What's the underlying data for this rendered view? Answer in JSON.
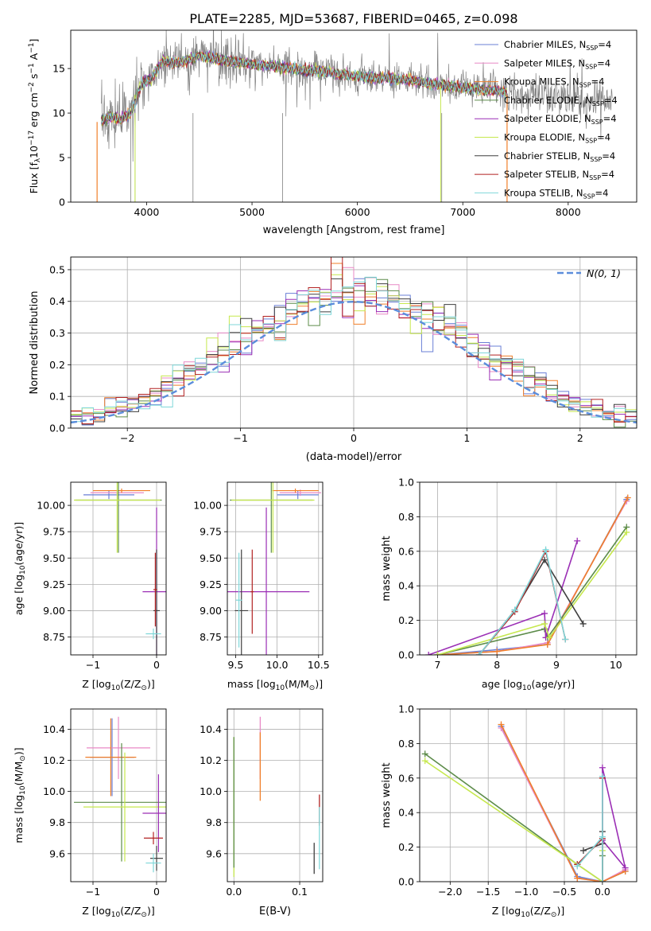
{
  "figure_title": "PLATE=2285, MJD=53687, FIBERID=0465, z=0.098",
  "colors": {
    "Chabrier MILES": "#6a7fd6",
    "Salpeter MILES": "#e889c6",
    "Kroupa MILES": "#f07f2a",
    "Chabrier ELODIE": "#5d8c4a",
    "Salpeter ELODIE": "#9b2fb5",
    "Kroupa ELODIE": "#c6e84e",
    "Chabrier STELIB": "#3f3f3f",
    "Salpeter STELIB": "#b22222",
    "Kroupa STELIB": "#7fd7d9",
    "data": "#808080",
    "normal": "#5b8ddb"
  },
  "chart_data": [
    {
      "id": "spectrum",
      "type": "line",
      "xlabel": "wavelength [Angstrom, rest frame]",
      "ylabel": "Flux [f_λ10^-17 erg cm^-2 s^-1 A^-1]",
      "xlim": [
        3280,
        8650
      ],
      "ylim": [
        0,
        19.3
      ],
      "xticks": [
        4000,
        5000,
        6000,
        7000,
        8000
      ],
      "yticks": [
        0,
        5,
        10,
        15
      ],
      "grid": false,
      "legend_position": "top-right",
      "legend": [
        {
          "name": "Chabrier MILES",
          "suffix": "N_SSP=4"
        },
        {
          "name": "Salpeter MILES",
          "suffix": "N_SSP=4"
        },
        {
          "name": "Kroupa MILES",
          "suffix": "N_SSP=4"
        },
        {
          "name": "Chabrier ELODIE",
          "suffix": "N_SSP=4"
        },
        {
          "name": "Salpeter ELODIE",
          "suffix": "N_SSP=4"
        },
        {
          "name": "Kroupa ELODIE",
          "suffix": "N_SSP=4"
        },
        {
          "name": "Chabrier STELIB",
          "suffix": "N_SSP=4"
        },
        {
          "name": "Salpeter STELIB",
          "suffix": "N_SSP=4"
        },
        {
          "name": "Kroupa STELIB",
          "suffix": "N_SSP=4"
        }
      ],
      "continuum": [
        [
          3570,
          9.1
        ],
        [
          3650,
          9.6
        ],
        [
          3750,
          9.3
        ],
        [
          3850,
          10.0
        ],
        [
          3950,
          13.2
        ],
        [
          4050,
          14.0
        ],
        [
          4150,
          15.8
        ],
        [
          4300,
          15.6
        ],
        [
          4500,
          16.4
        ],
        [
          4700,
          16.0
        ],
        [
          4900,
          15.6
        ],
        [
          5100,
          15.4
        ],
        [
          5300,
          15.1
        ],
        [
          5500,
          14.8
        ],
        [
          5700,
          14.6
        ],
        [
          5900,
          14.3
        ],
        [
          6100,
          14.0
        ],
        [
          6300,
          13.9
        ],
        [
          6500,
          13.7
        ],
        [
          6700,
          13.3
        ],
        [
          6900,
          13.0
        ],
        [
          7100,
          12.7
        ],
        [
          7300,
          12.5
        ],
        [
          7420,
          12.3
        ]
      ],
      "data_extent": [
        3570,
        8420
      ],
      "model_extent": [
        3570,
        7420
      ]
    },
    {
      "id": "residuals",
      "type": "histogram",
      "xlabel": "(data-model)/error",
      "ylabel": "Normed distribution",
      "xlim": [
        -2.5,
        2.5
      ],
      "ylim": [
        0,
        0.54
      ],
      "xticks": [
        -2,
        -1,
        0,
        1,
        2
      ],
      "yticks": [
        0.0,
        0.1,
        0.2,
        0.3,
        0.4,
        0.5
      ],
      "grid": true,
      "legend_position": "top-right",
      "legend": [
        {
          "name": "N(0,1)",
          "style": "dashed"
        }
      ],
      "bin_width": 0.1,
      "bin_start": -2.5,
      "models": 9
    },
    {
      "id": "age-vs-Z",
      "type": "errorbar",
      "xlabel": "Z [log10(Z/Z⊙)]",
      "ylabel": "age [log10(age/yr)]",
      "xlim": [
        -1.35,
        0.15
      ],
      "ylim": [
        8.58,
        10.22
      ],
      "xticks": [
        -1,
        0
      ],
      "yticks": [
        8.75,
        9.0,
        9.25,
        9.5,
        9.75,
        10.0
      ],
      "grid": true,
      "points": [
        {
          "series": "Chabrier MILES",
          "x": -0.75,
          "y": 10.1,
          "xerr": 0.4,
          "yerr": 0.04
        },
        {
          "series": "Salpeter MILES",
          "x": -0.62,
          "y": 10.12,
          "xerr": 0.42,
          "yerr": 0.03
        },
        {
          "series": "Kroupa MILES",
          "x": -0.55,
          "y": 10.14,
          "xerr": 0.45,
          "yerr": 0.02
        },
        {
          "series": "Chabrier ELODIE",
          "x": -0.6,
          "y": 10.05,
          "xerr": 0.68,
          "yerr": 0.5
        },
        {
          "series": "Kroupa ELODIE",
          "x": -0.62,
          "y": 10.05,
          "xerr": 0.68,
          "yerr": 0.5
        },
        {
          "series": "Salpeter ELODIE",
          "x": 0.0,
          "y": 9.18,
          "xerr": 0.22,
          "yerr": 0.8
        },
        {
          "series": "Chabrier STELIB",
          "x": 0.0,
          "y": 9.0,
          "xerr": 0.05,
          "yerr": 0.58
        },
        {
          "series": "Kroupa STELIB",
          "x": -0.05,
          "y": 8.78,
          "xerr": 0.12,
          "yerr": 0.05
        },
        {
          "series": "Salpeter STELIB",
          "x": -0.02,
          "y": 9.2,
          "xerr": 0.03,
          "yerr": 0.35
        }
      ]
    },
    {
      "id": "age-vs-mass",
      "type": "errorbar",
      "xlabel": "mass [log10(M/M⊙)]",
      "ylabel": "",
      "xlim": [
        9.4,
        10.55
      ],
      "ylim": [
        8.58,
        10.22
      ],
      "xticks": [
        9.5,
        10.0,
        10.5
      ],
      "yticks": [
        8.75,
        9.0,
        9.25,
        9.5,
        9.75,
        10.0
      ],
      "grid": true,
      "points": [
        {
          "series": "Chabrier MILES",
          "x": 10.25,
          "y": 10.1,
          "xerr": 0.25,
          "yerr": 0.04
        },
        {
          "series": "Salpeter MILES",
          "x": 10.28,
          "y": 10.12,
          "xerr": 0.25,
          "yerr": 0.03
        },
        {
          "series": "Kroupa MILES",
          "x": 10.22,
          "y": 10.14,
          "xerr": 0.28,
          "yerr": 0.02
        },
        {
          "series": "Chabrier ELODIE",
          "x": 9.93,
          "y": 10.05,
          "xerr": 0.5,
          "yerr": 0.5
        },
        {
          "series": "Kroupa ELODIE",
          "x": 9.95,
          "y": 10.05,
          "xerr": 0.5,
          "yerr": 0.5
        },
        {
          "series": "Salpeter ELODIE",
          "x": 9.87,
          "y": 9.18,
          "xerr": 0.52,
          "yerr": 0.8
        },
        {
          "series": "Chabrier STELIB",
          "x": 9.57,
          "y": 9.0,
          "xerr": 0.08,
          "yerr": 0.58
        },
        {
          "series": "Kroupa STELIB",
          "x": 9.54,
          "y": 9.1,
          "xerr": 0.04,
          "yerr": 0.45
        },
        {
          "series": "Salpeter STELIB",
          "x": 9.7,
          "y": 9.18,
          "xerr": 0.02,
          "yerr": 0.4
        }
      ]
    },
    {
      "id": "weight-vs-age",
      "type": "line",
      "xlabel": "age [log10(age/yr)]",
      "ylabel": "mass weight",
      "xlim": [
        6.7,
        10.35
      ],
      "ylim": [
        0,
        1.0
      ],
      "xticks": [
        7,
        8,
        9,
        10
      ],
      "yticks": [
        0.0,
        0.2,
        0.4,
        0.6,
        0.8,
        1.0
      ],
      "grid": true,
      "series": [
        {
          "name": "Chabrier MILES",
          "points": [
            [
              7.0,
              0.0
            ],
            [
              8.0,
              0.03
            ],
            [
              8.85,
              0.06
            ],
            [
              10.18,
              0.9
            ]
          ]
        },
        {
          "name": "Salpeter MILES",
          "points": [
            [
              7.0,
              0.0
            ],
            [
              8.0,
              0.02
            ],
            [
              8.85,
              0.07
            ],
            [
              10.18,
              0.89
            ]
          ]
        },
        {
          "name": "Kroupa MILES",
          "points": [
            [
              7.0,
              0.0
            ],
            [
              8.0,
              0.02
            ],
            [
              8.85,
              0.06
            ],
            [
              10.2,
              0.91
            ]
          ]
        },
        {
          "name": "Chabrier ELODIE",
          "points": [
            [
              7.0,
              0.0
            ],
            [
              8.8,
              0.15
            ],
            [
              8.85,
              0.1
            ],
            [
              10.18,
              0.74
            ]
          ]
        },
        {
          "name": "Salpeter ELODIE",
          "points": [
            [
              6.85,
              0.0
            ],
            [
              8.8,
              0.24
            ],
            [
              8.82,
              0.1
            ],
            [
              9.35,
              0.66
            ]
          ]
        },
        {
          "name": "Kroupa ELODIE",
          "points": [
            [
              7.0,
              0.0
            ],
            [
              8.8,
              0.18
            ],
            [
              8.88,
              0.1
            ],
            [
              10.18,
              0.71
            ]
          ]
        },
        {
          "name": "Chabrier STELIB",
          "points": [
            [
              7.7,
              0.0
            ],
            [
              8.3,
              0.26
            ],
            [
              8.8,
              0.55
            ],
            [
              9.45,
              0.18
            ]
          ]
        },
        {
          "name": "Salpeter STELIB",
          "points": [
            [
              7.7,
              0.0
            ],
            [
              8.3,
              0.25
            ],
            [
              8.82,
              0.6
            ],
            [
              9.15,
              0.09
            ]
          ]
        },
        {
          "name": "Kroupa STELIB",
          "points": [
            [
              7.7,
              0.0
            ],
            [
              8.3,
              0.26
            ],
            [
              8.82,
              0.61
            ],
            [
              9.15,
              0.09
            ]
          ]
        }
      ]
    },
    {
      "id": "mass-vs-Z",
      "type": "errorbar",
      "xlabel": "Z [log10(Z/Z⊙)]",
      "ylabel": "mass [log10(M/M⊙)]",
      "xlim": [
        -1.35,
        0.15
      ],
      "ylim": [
        9.42,
        10.53
      ],
      "xticks": [
        -1,
        0
      ],
      "yticks": [
        9.6,
        9.8,
        10.0,
        10.2,
        10.4
      ],
      "grid": true,
      "points": [
        {
          "series": "Chabrier MILES",
          "x": -0.7,
          "y": 10.22,
          "xerr": 0.35,
          "yerr": 0.25
        },
        {
          "series": "Salpeter MILES",
          "x": -0.6,
          "y": 10.28,
          "xerr": 0.5,
          "yerr": 0.2
        },
        {
          "series": "Kroupa MILES",
          "x": -0.72,
          "y": 10.22,
          "xerr": 0.4,
          "yerr": 0.25
        },
        {
          "series": "Chabrier ELODIE",
          "x": -0.55,
          "y": 9.93,
          "xerr": 0.75,
          "yerr": 0.38
        },
        {
          "series": "Kroupa ELODIE",
          "x": -0.5,
          "y": 9.9,
          "xerr": 0.65,
          "yerr": 0.35
        },
        {
          "series": "Salpeter ELODIE",
          "x": 0.03,
          "y": 9.86,
          "xerr": 0.25,
          "yerr": 0.25
        },
        {
          "series": "Chabrier STELIB",
          "x": 0.0,
          "y": 9.57,
          "xerr": 0.1,
          "yerr": 0.08
        },
        {
          "series": "Kroupa STELIB",
          "x": -0.05,
          "y": 9.54,
          "xerr": 0.12,
          "yerr": 0.06
        },
        {
          "series": "Salpeter STELIB",
          "x": -0.05,
          "y": 9.7,
          "xerr": 0.15,
          "yerr": 0.04
        }
      ]
    },
    {
      "id": "mass-vs-ebv",
      "type": "errorbar",
      "xlabel": "E(B-V)",
      "ylabel": "",
      "xlim": [
        -0.01,
        0.135
      ],
      "ylim": [
        9.42,
        10.53
      ],
      "xticks": [
        0.0,
        0.1
      ],
      "yticks": [
        9.6,
        9.8,
        10.0,
        10.2,
        10.4
      ],
      "grid": true,
      "points": [
        {
          "series": "Salpeter MILES",
          "x": 0.04,
          "y": 10.28,
          "xerr": 0.0,
          "yerr": 0.2
        },
        {
          "series": "Kroupa MILES",
          "x": 0.04,
          "y": 10.16,
          "xerr": 0.0,
          "yerr": 0.22
        },
        {
          "series": "Kroupa ELODIE",
          "x": 0.0,
          "y": 9.9,
          "xerr": 0.0,
          "yerr": 0.45
        },
        {
          "series": "Chabrier ELODIE",
          "x": 0.0,
          "y": 9.93,
          "xerr": 0.0,
          "yerr": 0.42
        },
        {
          "series": "Salpeter STELIB",
          "x": 0.13,
          "y": 9.88,
          "xerr": 0.0,
          "yerr": 0.1
        },
        {
          "series": "Kroupa STELIB",
          "x": 0.13,
          "y": 9.7,
          "xerr": 0.0,
          "yerr": 0.2
        },
        {
          "series": "Chabrier STELIB",
          "x": 0.122,
          "y": 9.57,
          "xerr": 0.0,
          "yerr": 0.1
        }
      ]
    },
    {
      "id": "weight-vs-Z",
      "type": "line",
      "xlabel": "Z [log10(Z/Z⊙)]",
      "ylabel": "mass weight",
      "xlim": [
        -2.4,
        0.45
      ],
      "ylim": [
        0,
        1.0
      ],
      "xticks": [
        -2.0,
        -1.5,
        -1.0,
        -0.5,
        0.0
      ],
      "yticks": [
        0.0,
        0.2,
        0.4,
        0.6,
        0.8,
        1.0
      ],
      "grid": true,
      "series": [
        {
          "name": "Chabrier MILES",
          "points": [
            [
              -1.33,
              0.9
            ],
            [
              -0.33,
              0.03
            ],
            [
              0.0,
              0.0
            ],
            [
              0.3,
              0.06
            ]
          ]
        },
        {
          "name": "Salpeter MILES",
          "points": [
            [
              -1.33,
              0.89
            ],
            [
              -0.33,
              0.02
            ],
            [
              0.0,
              0.0
            ],
            [
              0.3,
              0.07
            ]
          ]
        },
        {
          "name": "Kroupa MILES",
          "points": [
            [
              -1.33,
              0.91
            ],
            [
              -0.33,
              0.02
            ],
            [
              0.0,
              0.0
            ],
            [
              0.3,
              0.06
            ]
          ]
        },
        {
          "name": "Chabrier ELODIE",
          "points": [
            [
              -2.33,
              0.74
            ],
            [
              -0.33,
              0.1
            ],
            [
              0.0,
              0.0
            ],
            [
              0.0,
              0.15
            ]
          ]
        },
        {
          "name": "Salpeter ELODIE",
          "points": [
            [
              0.0,
              0.0
            ],
            [
              0.0,
              0.66
            ],
            [
              0.3,
              0.08
            ],
            [
              0.0,
              0.24
            ]
          ]
        },
        {
          "name": "Kroupa ELODIE",
          "points": [
            [
              -2.33,
              0.7
            ],
            [
              -0.33,
              0.1
            ],
            [
              0.0,
              0.0
            ],
            [
              0.0,
              0.18
            ]
          ]
        },
        {
          "name": "Chabrier STELIB",
          "points": [
            [
              -0.25,
              0.18
            ],
            [
              0.0,
              0.22
            ],
            [
              0.0,
              0.29
            ],
            [
              0.0,
              0.0
            ]
          ]
        },
        {
          "name": "Salpeter STELIB",
          "points": [
            [
              -0.33,
              0.1
            ],
            [
              0.0,
              0.25
            ],
            [
              0.0,
              0.6
            ],
            [
              0.0,
              0.0
            ]
          ]
        },
        {
          "name": "Kroupa STELIB",
          "points": [
            [
              -0.33,
              0.09
            ],
            [
              0.0,
              0.26
            ],
            [
              0.0,
              0.61
            ],
            [
              0.0,
              0.0
            ]
          ]
        }
      ]
    }
  ]
}
